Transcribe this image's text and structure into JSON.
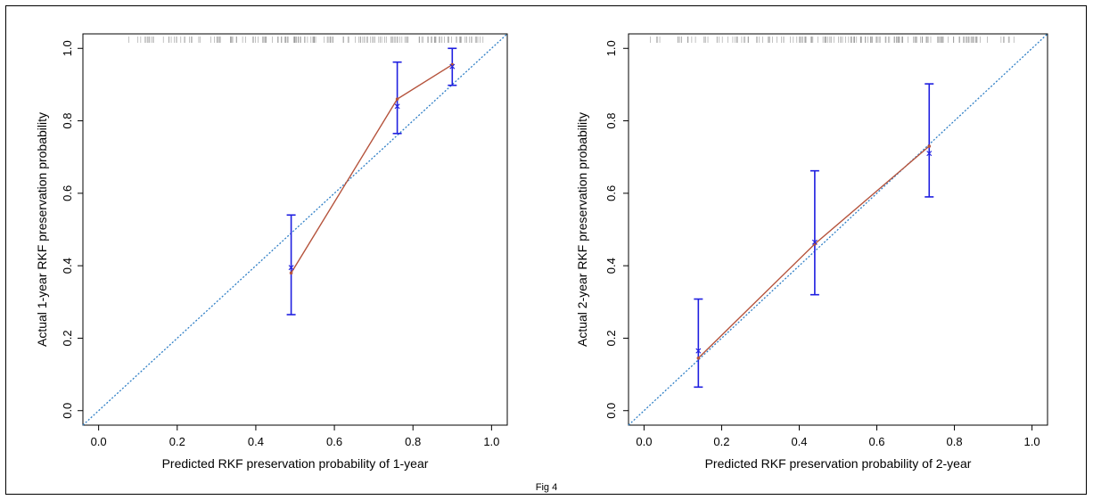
{
  "figure": {
    "caption": "Fig 4"
  },
  "colors": {
    "calibration_line": "#b5533c",
    "error_bar": "#1f1fe0",
    "reference_line": "#2f7fc6",
    "rug": "#9a9a9a",
    "axis": "#000000"
  },
  "chart_data": [
    {
      "type": "line",
      "title": "",
      "xlabel": "Predicted RKF preservation probability of 1-year",
      "ylabel": "Actual 1-year RKF preservation probability",
      "xlim": [
        -0.04,
        1.04
      ],
      "ylim": [
        -0.04,
        1.04
      ],
      "xticks": [
        "0.0",
        "0.2",
        "0.4",
        "0.6",
        "0.8",
        "1.0"
      ],
      "yticks": [
        "0.0",
        "0.2",
        "0.4",
        "0.6",
        "0.8",
        "1.0"
      ],
      "reference_line": {
        "style": "dotted",
        "from": [
          -0.04,
          -0.04
        ],
        "to": [
          1.04,
          1.04
        ]
      },
      "calibration": {
        "x": [
          0.49,
          0.76,
          0.9
        ],
        "observed": [
          0.38,
          0.86,
          0.955
        ],
        "bias_corrected": [
          0.395,
          0.84,
          0.95
        ],
        "ci_lower": [
          0.265,
          0.765,
          0.898
        ],
        "ci_upper": [
          0.54,
          0.962,
          1.0
        ]
      },
      "rug_range": [
        0.07,
        0.98
      ],
      "grid": false
    },
    {
      "type": "line",
      "title": "",
      "xlabel": "Predicted RKF preservation probability of 2-year",
      "ylabel": "Actual 2-year RKF preservation probability",
      "xlim": [
        -0.04,
        1.04
      ],
      "ylim": [
        -0.04,
        1.04
      ],
      "xticks": [
        "0.0",
        "0.2",
        "0.4",
        "0.6",
        "0.8",
        "1.0"
      ],
      "yticks": [
        "0.0",
        "0.2",
        "0.4",
        "0.6",
        "0.8",
        "1.0"
      ],
      "reference_line": {
        "style": "dotted",
        "from": [
          -0.04,
          -0.04
        ],
        "to": [
          1.04,
          1.04
        ]
      },
      "calibration": {
        "x": [
          0.14,
          0.44,
          0.735
        ],
        "observed": [
          0.145,
          0.46,
          0.73
        ],
        "bias_corrected": [
          0.165,
          0.465,
          0.71
        ],
        "ci_lower": [
          0.065,
          0.32,
          0.59
        ],
        "ci_upper": [
          0.308,
          0.662,
          0.902
        ]
      },
      "rug_range": [
        0.01,
        0.98
      ],
      "grid": false
    }
  ]
}
